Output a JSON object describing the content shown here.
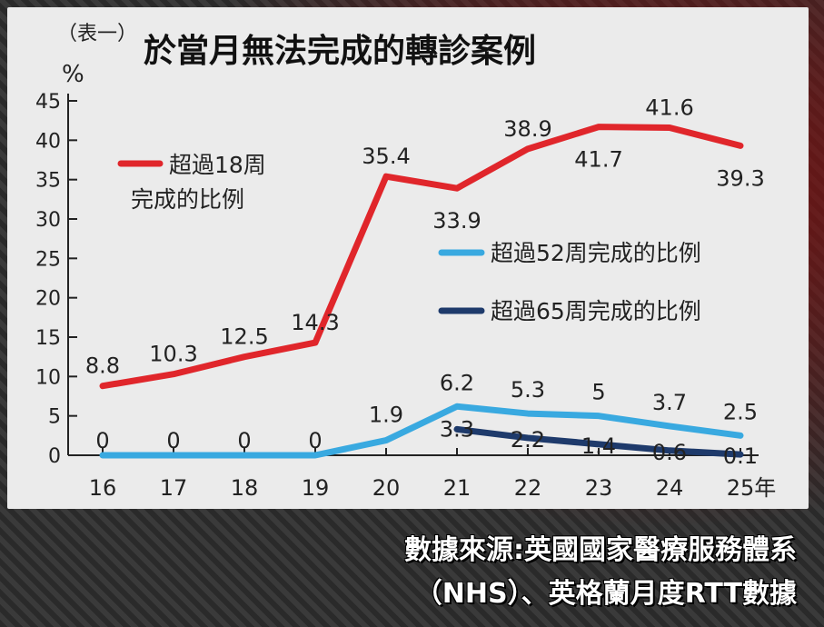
{
  "chart_data": {
    "type": "line",
    "title": "於當月無法完成的轉診案例",
    "table_tag": "（表一）",
    "ylabel": "%",
    "ylim": [
      0,
      45
    ],
    "yticks": [
      "0",
      "5",
      "10",
      "15",
      "20",
      "25",
      "30",
      "35",
      "40",
      "45"
    ],
    "categories": [
      "16",
      "17",
      "18",
      "19",
      "20",
      "21",
      "22",
      "23",
      "24",
      "25年"
    ],
    "grid": false,
    "series": [
      {
        "name_lines": [
          "超過18周",
          "完成的比例"
        ],
        "color": "#e0262b",
        "values": [
          8.8,
          10.3,
          12.5,
          14.3,
          35.4,
          33.9,
          38.9,
          41.7,
          41.6,
          39.3
        ],
        "labels": [
          "8.8",
          "10.3",
          "12.5",
          "14.3",
          "35.4",
          "33.9",
          "38.9",
          "41.7",
          "41.6",
          "39.3"
        ]
      },
      {
        "name": "超過52周完成的比例",
        "color": "#39a9e0",
        "values": [
          0,
          0,
          0,
          0,
          1.9,
          6.2,
          5.3,
          5,
          3.7,
          2.5
        ],
        "labels": [
          "0",
          "0",
          "0",
          "0",
          "1.9",
          "6.2",
          "5.3",
          "5",
          "3.7",
          "2.5"
        ]
      },
      {
        "name": "超過65周完成的比例",
        "color": "#1e3a6b",
        "values": [
          null,
          null,
          null,
          null,
          null,
          3.3,
          2.2,
          1.4,
          0.6,
          0.1
        ],
        "labels": [
          "",
          "",
          "",
          "",
          "",
          "3.3",
          "2.2",
          "1.4",
          "0.6",
          "0.1"
        ]
      }
    ]
  },
  "source": {
    "line1": "數據來源:英國國家醫療服務體系",
    "line2": "（NHS）、英格蘭月度RTT數據"
  }
}
